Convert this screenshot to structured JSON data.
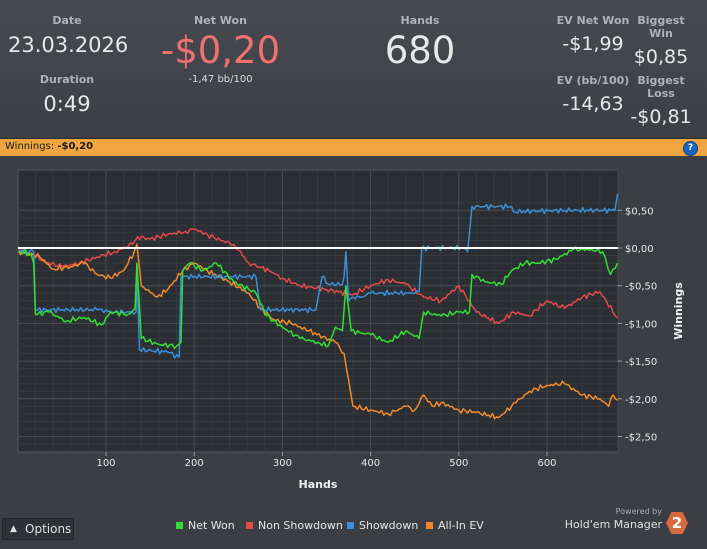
{
  "stats": {
    "date_label": "Date",
    "date_value": "23.03.2026",
    "duration_label": "Duration",
    "duration_value": "0:49",
    "net_won_label": "Net Won",
    "net_won_value": "-$0,20",
    "bb_per_100": "-1,47 bb/100",
    "hands_label": "Hands",
    "hands_value": "680",
    "ev_net_won_label": "EV Net Won",
    "ev_net_won_value": "-$1,99",
    "biggest_win_label": "Biggest Win",
    "biggest_win_value": "$0,85",
    "ev_bb100_label": "EV (bb/100)",
    "ev_bb100_value": "-14,63",
    "biggest_loss_label": "Biggest Loss",
    "biggest_loss_value": "-$0,81"
  },
  "winnings_bar": {
    "label": "Winnings:",
    "value": "-$0,20",
    "help_icon": "question-icon"
  },
  "options_button": {
    "label": "Options",
    "icon": "chevron-up-icon"
  },
  "branding": {
    "powered": "Powered by",
    "product": "Hold'em Manager",
    "logo_text": "2"
  },
  "colors": {
    "net_won": "#33dd33",
    "non_showdown": "#e04a4a",
    "showdown": "#3a8fd8",
    "all_in_ev": "#ef8a2c",
    "negative_value": "#f07070"
  },
  "chart_data": {
    "type": "line",
    "xlabel": "Hands",
    "ylabel": "Winnings",
    "xlim": [
      1,
      680
    ],
    "ylim": [
      -2.7,
      0.75
    ],
    "x_ticks": [
      100,
      200,
      300,
      400,
      500,
      600
    ],
    "x_tick_labels": [
      "100",
      "200",
      "300",
      "400",
      "500",
      "600"
    ],
    "y_ticks": [
      0.5,
      0,
      -0.5,
      -1,
      -1.5,
      -2,
      -2.5
    ],
    "y_tick_labels": [
      "$0,50",
      "$0,00",
      "-$0,50",
      "-$1,00",
      "-$1,50",
      "-$2,00",
      "-$2,50"
    ],
    "grid": true,
    "legend": "bottom",
    "series": [
      {
        "name": "Net Won",
        "color": "#33dd33",
        "points": [
          [
            1,
            -0.05
          ],
          [
            15,
            -0.08
          ],
          [
            18,
            -0.2
          ],
          [
            20,
            -0.88
          ],
          [
            35,
            -0.85
          ],
          [
            55,
            -0.97
          ],
          [
            75,
            -0.92
          ],
          [
            95,
            -1.02
          ],
          [
            105,
            -0.85
          ],
          [
            125,
            -0.88
          ],
          [
            133,
            -0.8
          ],
          [
            135,
            -0.2
          ],
          [
            140,
            -1.2
          ],
          [
            160,
            -1.28
          ],
          [
            180,
            -1.3
          ],
          [
            185,
            -1.25
          ],
          [
            187,
            -0.3
          ],
          [
            195,
            -0.2
          ],
          [
            210,
            -0.3
          ],
          [
            225,
            -0.2
          ],
          [
            245,
            -0.45
          ],
          [
            262,
            -0.55
          ],
          [
            270,
            -0.6
          ],
          [
            282,
            -0.9
          ],
          [
            300,
            -1.05
          ],
          [
            320,
            -1.2
          ],
          [
            340,
            -1.25
          ],
          [
            352,
            -1.3
          ],
          [
            360,
            -1.05
          ],
          [
            368,
            -1.1
          ],
          [
            372,
            -0.5
          ],
          [
            378,
            -1.1
          ],
          [
            400,
            -1.15
          ],
          [
            420,
            -1.25
          ],
          [
            440,
            -1.1
          ],
          [
            455,
            -1.2
          ],
          [
            460,
            -0.85
          ],
          [
            480,
            -0.9
          ],
          [
            500,
            -0.85
          ],
          [
            512,
            -0.85
          ],
          [
            515,
            -0.35
          ],
          [
            530,
            -0.45
          ],
          [
            548,
            -0.48
          ],
          [
            560,
            -0.3
          ],
          [
            575,
            -0.2
          ],
          [
            590,
            -0.2
          ],
          [
            610,
            -0.15
          ],
          [
            630,
            -0.02
          ],
          [
            650,
            -0.02
          ],
          [
            663,
            -0.05
          ],
          [
            672,
            -0.35
          ],
          [
            680,
            -0.2
          ]
        ]
      },
      {
        "name": "Non Showdown",
        "color": "#e04a4a",
        "points": [
          [
            1,
            -0.03
          ],
          [
            20,
            -0.1
          ],
          [
            30,
            -0.18
          ],
          [
            50,
            -0.25
          ],
          [
            70,
            -0.2
          ],
          [
            90,
            -0.12
          ],
          [
            110,
            -0.05
          ],
          [
            130,
            0.05
          ],
          [
            136,
            0.15
          ],
          [
            150,
            0.12
          ],
          [
            170,
            0.18
          ],
          [
            190,
            0.22
          ],
          [
            200,
            0.25
          ],
          [
            215,
            0.18
          ],
          [
            230,
            0.1
          ],
          [
            245,
            0.05
          ],
          [
            262,
            -0.2
          ],
          [
            285,
            -0.3
          ],
          [
            300,
            -0.4
          ],
          [
            320,
            -0.5
          ],
          [
            350,
            -0.55
          ],
          [
            380,
            -0.62
          ],
          [
            400,
            -0.5
          ],
          [
            420,
            -0.42
          ],
          [
            440,
            -0.48
          ],
          [
            460,
            -0.65
          ],
          [
            480,
            -0.7
          ],
          [
            500,
            -0.5
          ],
          [
            520,
            -0.85
          ],
          [
            545,
            -1.0
          ],
          [
            562,
            -0.85
          ],
          [
            580,
            -0.9
          ],
          [
            600,
            -0.7
          ],
          [
            620,
            -0.8
          ],
          [
            640,
            -0.65
          ],
          [
            660,
            -0.58
          ],
          [
            680,
            -0.93
          ]
        ]
      },
      {
        "name": "Showdown",
        "color": "#3a8fd8",
        "points": [
          [
            1,
            -0.03
          ],
          [
            18,
            -0.05
          ],
          [
            20,
            -0.82
          ],
          [
            90,
            -0.82
          ],
          [
            110,
            -0.85
          ],
          [
            134,
            -0.85
          ],
          [
            135,
            -0.22
          ],
          [
            138,
            -1.35
          ],
          [
            170,
            -1.38
          ],
          [
            183,
            -1.45
          ],
          [
            185,
            -0.38
          ],
          [
            235,
            -0.38
          ],
          [
            270,
            -0.38
          ],
          [
            275,
            -0.82
          ],
          [
            338,
            -0.82
          ],
          [
            345,
            -0.38
          ],
          [
            352,
            -0.48
          ],
          [
            368,
            -0.48
          ],
          [
            370,
            -0.38
          ],
          [
            372,
            -0.05
          ],
          [
            375,
            -0.7
          ],
          [
            380,
            -0.65
          ],
          [
            390,
            -0.65
          ],
          [
            400,
            -0.6
          ],
          [
            430,
            -0.6
          ],
          [
            442,
            -0.6
          ],
          [
            450,
            -0.6
          ],
          [
            455,
            -0.58
          ],
          [
            458,
            0.0
          ],
          [
            505,
            0.0
          ],
          [
            510,
            -0.05
          ],
          [
            515,
            0.55
          ],
          [
            560,
            0.55
          ],
          [
            562,
            0.48
          ],
          [
            620,
            0.5
          ],
          [
            677,
            0.5
          ],
          [
            680,
            0.72
          ]
        ]
      },
      {
        "name": "All-In EV",
        "color": "#ef8a2c",
        "points": [
          [
            1,
            -0.05
          ],
          [
            15,
            -0.08
          ],
          [
            25,
            -0.12
          ],
          [
            40,
            -0.28
          ],
          [
            60,
            -0.25
          ],
          [
            75,
            -0.2
          ],
          [
            90,
            -0.35
          ],
          [
            105,
            -0.4
          ],
          [
            120,
            -0.3
          ],
          [
            132,
            -0.05
          ],
          [
            135,
            0.05
          ],
          [
            140,
            -0.5
          ],
          [
            158,
            -0.65
          ],
          [
            170,
            -0.55
          ],
          [
            187,
            -0.3
          ],
          [
            200,
            -0.2
          ],
          [
            215,
            -0.3
          ],
          [
            240,
            -0.45
          ],
          [
            262,
            -0.6
          ],
          [
            275,
            -0.8
          ],
          [
            290,
            -0.95
          ],
          [
            310,
            -1.0
          ],
          [
            330,
            -1.1
          ],
          [
            360,
            -1.25
          ],
          [
            370,
            -1.4
          ],
          [
            380,
            -2.1
          ],
          [
            400,
            -2.15
          ],
          [
            420,
            -2.2
          ],
          [
            440,
            -2.1
          ],
          [
            450,
            -2.15
          ],
          [
            460,
            -1.95
          ],
          [
            470,
            -2.1
          ],
          [
            480,
            -2.05
          ],
          [
            500,
            -2.15
          ],
          [
            520,
            -2.18
          ],
          [
            545,
            -2.25
          ],
          [
            565,
            -2.05
          ],
          [
            580,
            -1.9
          ],
          [
            600,
            -1.82
          ],
          [
            620,
            -1.8
          ],
          [
            640,
            -1.95
          ],
          [
            660,
            -2.0
          ],
          [
            670,
            -2.1
          ],
          [
            675,
            -1.95
          ],
          [
            680,
            -2.02
          ]
        ]
      }
    ]
  }
}
